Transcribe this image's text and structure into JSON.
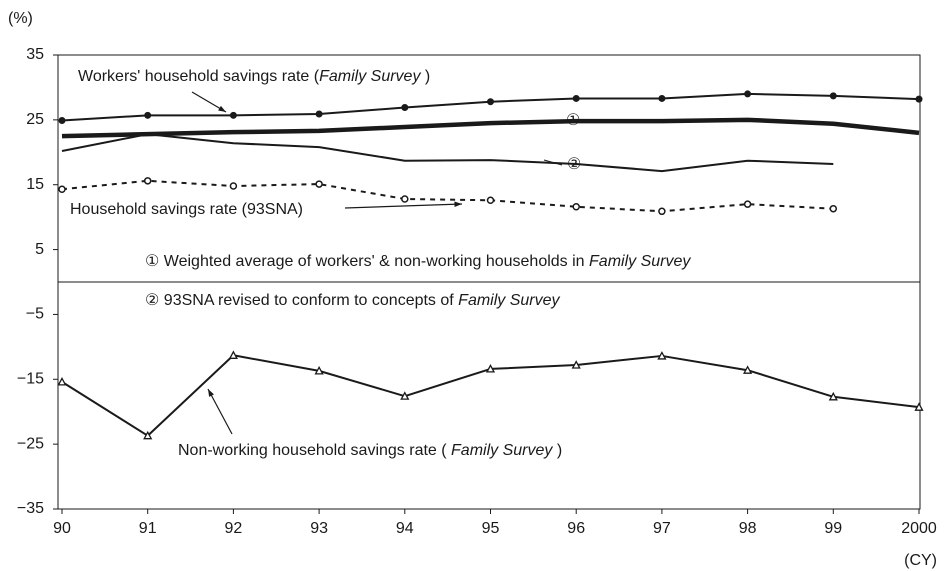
{
  "chart_data": {
    "type": "line",
    "y_unit": "(%)",
    "x_unit": "(CY)",
    "categories": [
      "90",
      "91",
      "92",
      "93",
      "94",
      "95",
      "96",
      "97",
      "98",
      "99",
      "2000"
    ],
    "ylim": [
      -35,
      35
    ],
    "yticks": [
      {
        "value": -35,
        "label": "−35"
      },
      {
        "value": -25,
        "label": "−25"
      },
      {
        "value": -15,
        "label": "−15"
      },
      {
        "value": -5,
        "label": "−5"
      },
      5,
      15,
      25,
      35
    ],
    "series": [
      {
        "name": "Workers' household savings rate",
        "color": "#1a1a1a",
        "width": 2,
        "marker": "filled-circle",
        "values": [
          24.9,
          25.7,
          25.7,
          25.9,
          26.9,
          27.8,
          28.3,
          28.3,
          29.0,
          28.7,
          28.2
        ]
      },
      {
        "name": "Weighted average",
        "color": "#1a1a1a",
        "width": 4.5,
        "marker": "none",
        "values": [
          22.5,
          22.8,
          23.1,
          23.3,
          23.9,
          24.5,
          24.8,
          24.8,
          25.0,
          24.4,
          23.0
        ]
      },
      {
        "name": "93SNA revised",
        "color": "#1a1a1a",
        "width": 2,
        "marker": "none",
        "values": [
          20.2,
          22.8,
          21.4,
          20.8,
          18.7,
          18.8,
          18.2,
          17.1,
          18.7,
          18.2,
          null
        ]
      },
      {
        "name": "Household savings rate (93SNA)",
        "color": "#1a1a1a",
        "width": 2,
        "dash": true,
        "marker": "open-circle",
        "values": [
          14.3,
          15.6,
          14.8,
          15.1,
          12.8,
          12.6,
          11.6,
          10.9,
          12.0,
          11.3,
          null
        ]
      },
      {
        "name": "Non-working household savings rate",
        "color": "#1a1a1a",
        "width": 2,
        "marker": "open-triangle",
        "values": [
          -15.4,
          -23.7,
          -11.3,
          -13.7,
          -17.6,
          -13.4,
          -12.8,
          -11.4,
          -13.6,
          -17.7,
          -19.3
        ]
      }
    ],
    "annotations": [
      {
        "parts": [
          {
            "text": "Workers' household savings rate ("
          },
          {
            "text": "Family Survey",
            "italic": true
          },
          {
            "text": " )"
          }
        ]
      },
      {
        "parts": [
          {
            "text": "①"
          }
        ]
      },
      {
        "parts": [
          {
            "text": "②"
          }
        ]
      },
      {
        "parts": [
          {
            "text": "Household savings rate (93SNA)"
          }
        ]
      },
      {
        "parts": [
          {
            "text": "① Weighted average of workers' & non-working households in "
          },
          {
            "text": "Family Survey",
            "italic": true
          }
        ]
      },
      {
        "parts": [
          {
            "text": "② 93SNA revised to conform to concepts of "
          },
          {
            "text": "Family Survey",
            "italic": true
          }
        ]
      },
      {
        "parts": [
          {
            "text": "Non-working household savings rate ( "
          },
          {
            "text": "Family Survey",
            "italic": true
          },
          {
            "text": " )"
          }
        ]
      }
    ]
  }
}
